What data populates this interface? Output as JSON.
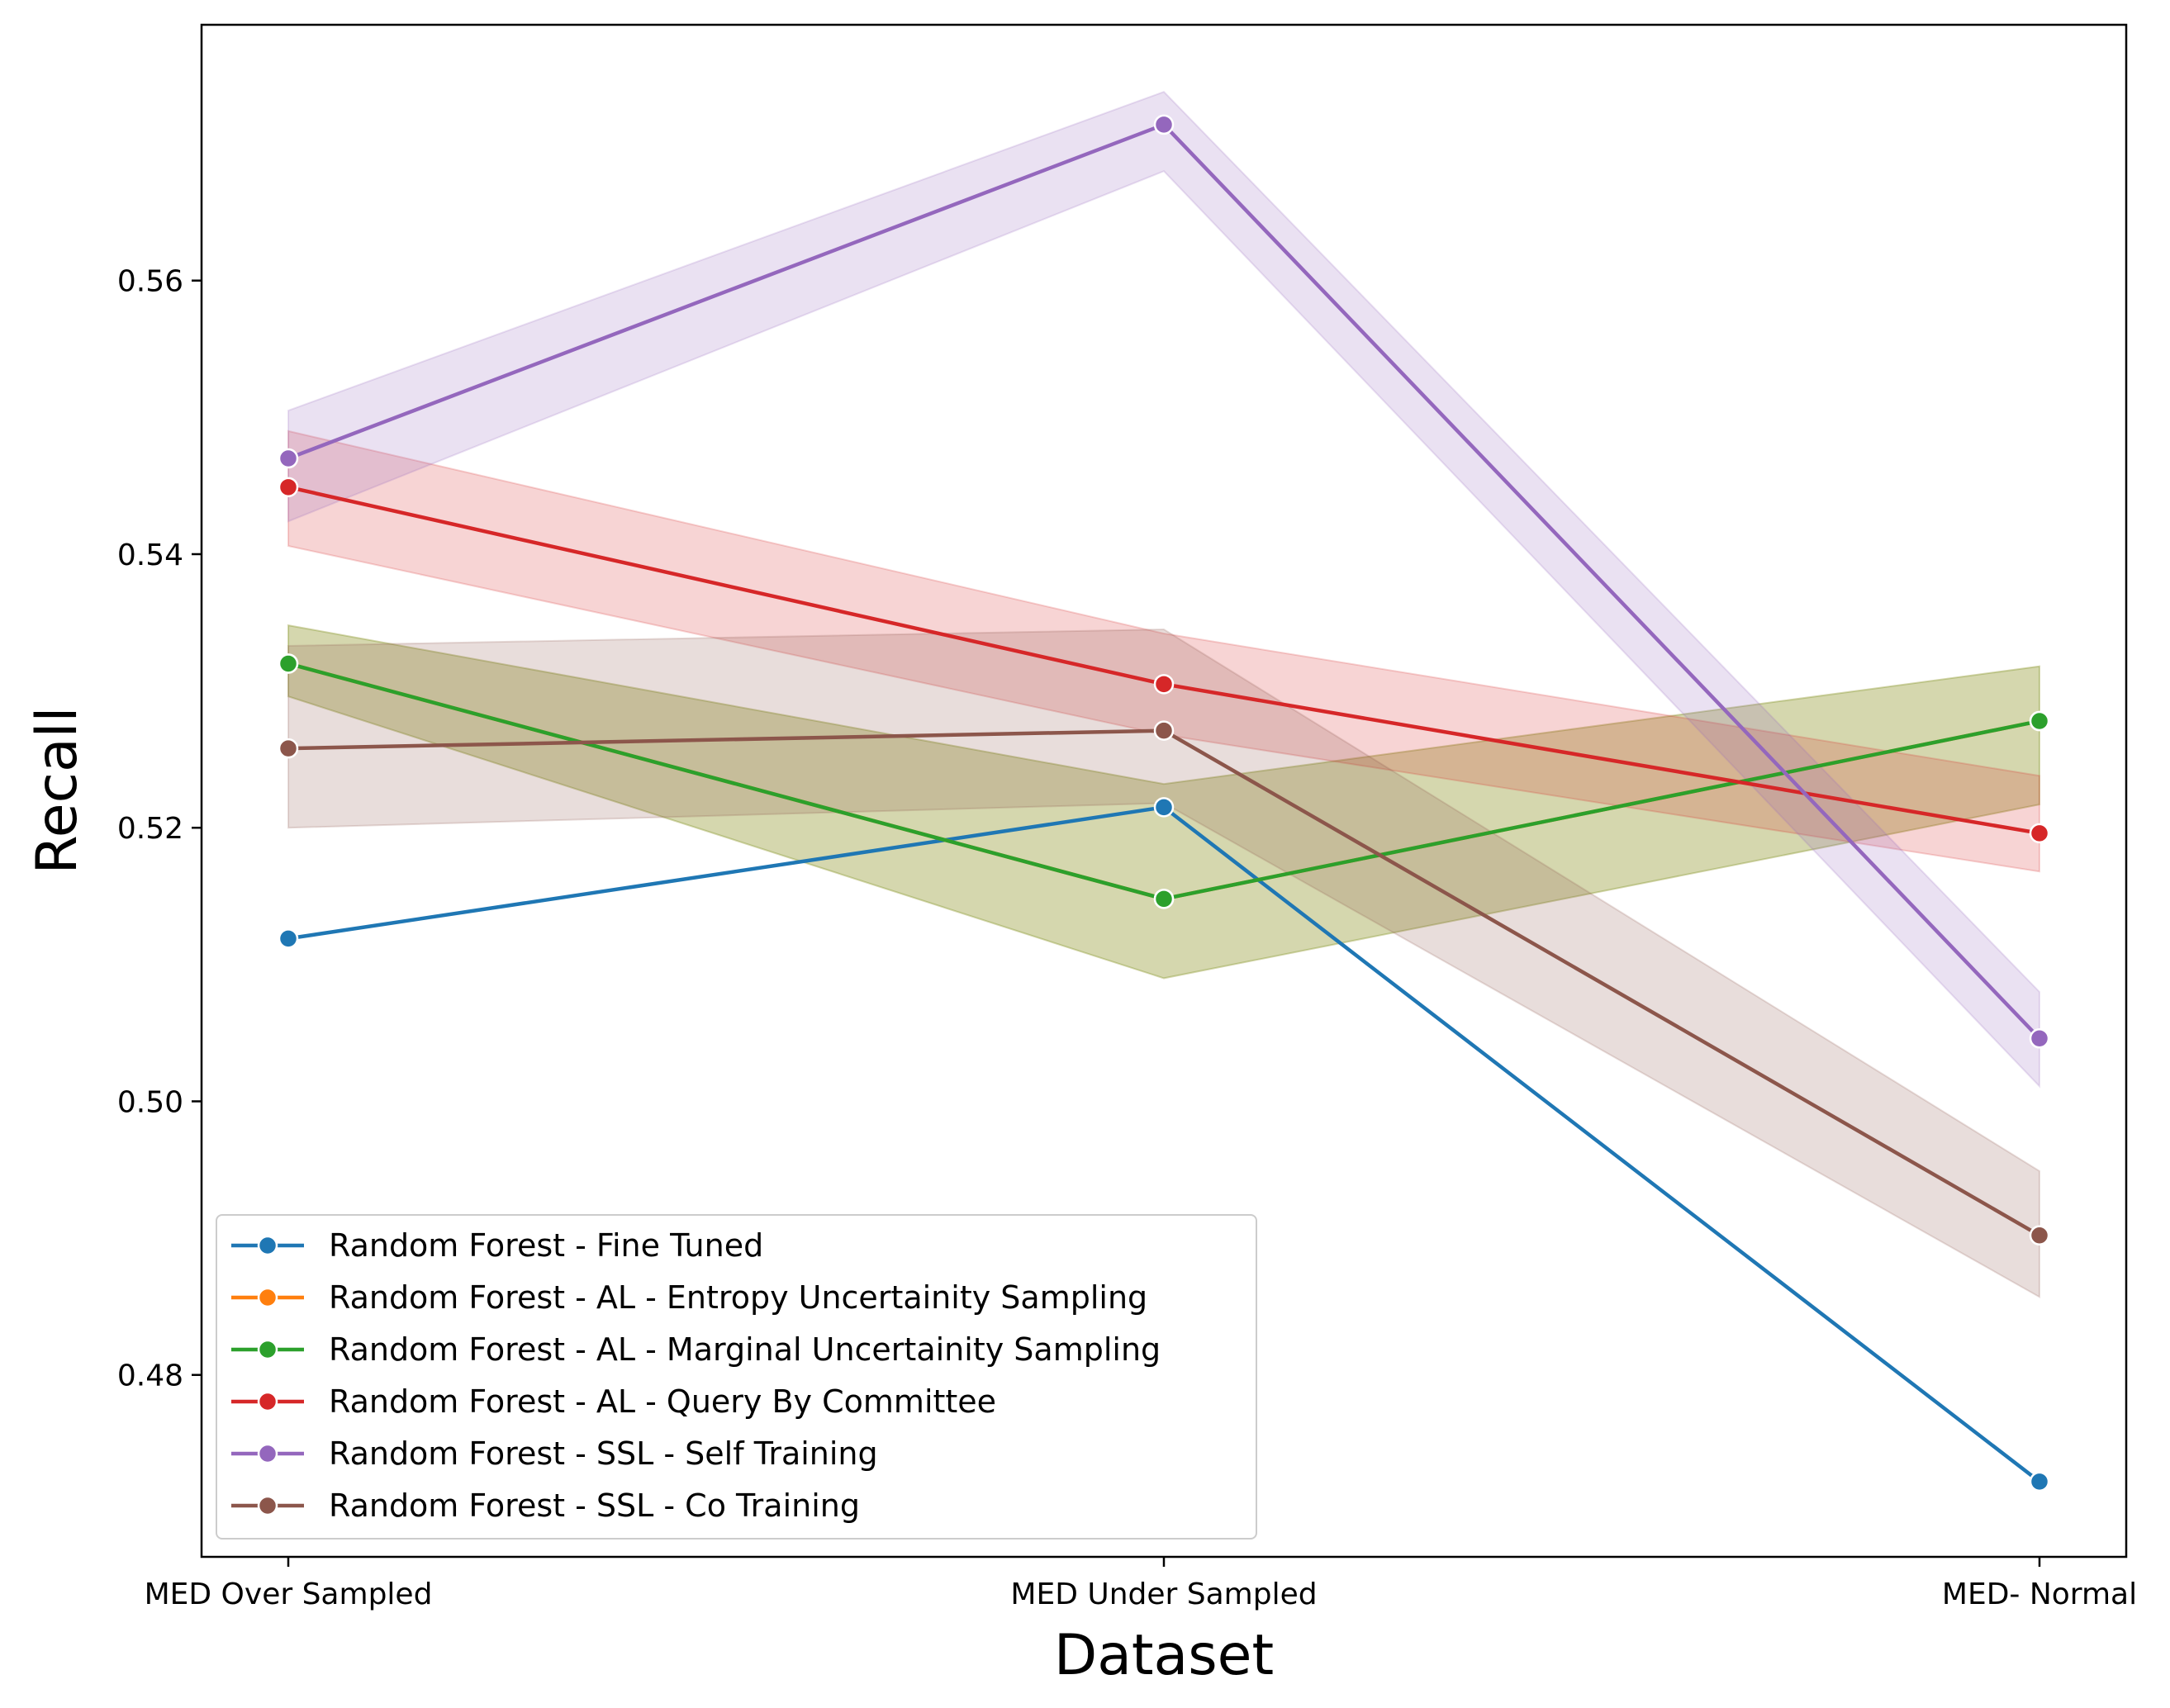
{
  "chart_data": {
    "type": "line",
    "title": "",
    "xlabel": "Dataset",
    "ylabel": "Recall",
    "categories": [
      "MED Over Sampled",
      "MED Under Sampled",
      "MED- Normal"
    ],
    "ylim": [
      0.4667,
      0.5787
    ],
    "yticks": [
      0.48,
      0.5,
      0.52,
      0.54,
      0.56
    ],
    "ytick_labels": [
      "0.48",
      "0.50",
      "0.52",
      "0.54",
      "0.56"
    ],
    "grid": false,
    "legend_position": "lower-left",
    "series": [
      {
        "name": "Random Forest - Fine Tuned",
        "color": "#1f77b4",
        "values": [
          0.5119,
          0.5215,
          0.4722
        ],
        "band": null
      },
      {
        "name": "Random Forest - AL - Entropy Uncertainity Sampling",
        "color": "#ff7f0e",
        "values": [
          0.532,
          0.5148,
          0.5278
        ],
        "band": {
          "lower": [
            0.5296,
            0.509,
            0.5217
          ],
          "upper": [
            0.5348,
            0.5232,
            0.5318
          ]
        }
      },
      {
        "name": "Random Forest - AL - Marginal Uncertainity Sampling",
        "color": "#2ca02c",
        "values": [
          0.532,
          0.5148,
          0.5278
        ],
        "band": {
          "lower": [
            0.5296,
            0.509,
            0.5217
          ],
          "upper": [
            0.5348,
            0.5232,
            0.5318
          ]
        }
      },
      {
        "name": "Random Forest - AL - Query By Committee",
        "color": "#d62728",
        "values": [
          0.5449,
          0.5305,
          0.5196
        ],
        "band": {
          "lower": [
            0.5406,
            0.5268,
            0.5168
          ],
          "upper": [
            0.549,
            0.5342,
            0.5238
          ]
        }
      },
      {
        "name": "Random Forest - SSL - Self Training",
        "color": "#9467bd",
        "values": [
          0.547,
          0.5714,
          0.5046
        ],
        "band": {
          "lower": [
            0.5424,
            0.568,
            0.5011
          ],
          "upper": [
            0.5505,
            0.5738,
            0.508
          ]
        }
      },
      {
        "name": "Random Forest - SSL - Co Training",
        "color": "#8c564b",
        "values": [
          0.5258,
          0.5271,
          0.4902
        ],
        "band": {
          "lower": [
            0.52,
            0.5218,
            0.4857
          ],
          "upper": [
            0.5333,
            0.5345,
            0.4949
          ]
        }
      }
    ]
  }
}
